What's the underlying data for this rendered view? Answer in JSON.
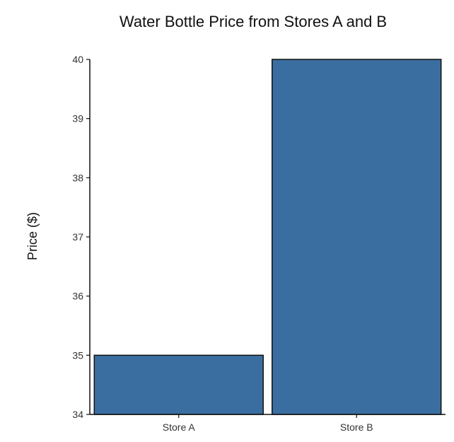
{
  "chart_data": {
    "type": "bar",
    "title": "Water Bottle Price from Stores A and B",
    "xlabel": "",
    "ylabel": "Price ($)",
    "categories": [
      "Store A",
      "Store B"
    ],
    "values": [
      35,
      40
    ],
    "ylim": [
      34,
      40
    ],
    "yticks": [
      34,
      35,
      36,
      37,
      38,
      39,
      40
    ],
    "bar_color": "#3b6ea0",
    "grid": false,
    "legend": "none"
  }
}
